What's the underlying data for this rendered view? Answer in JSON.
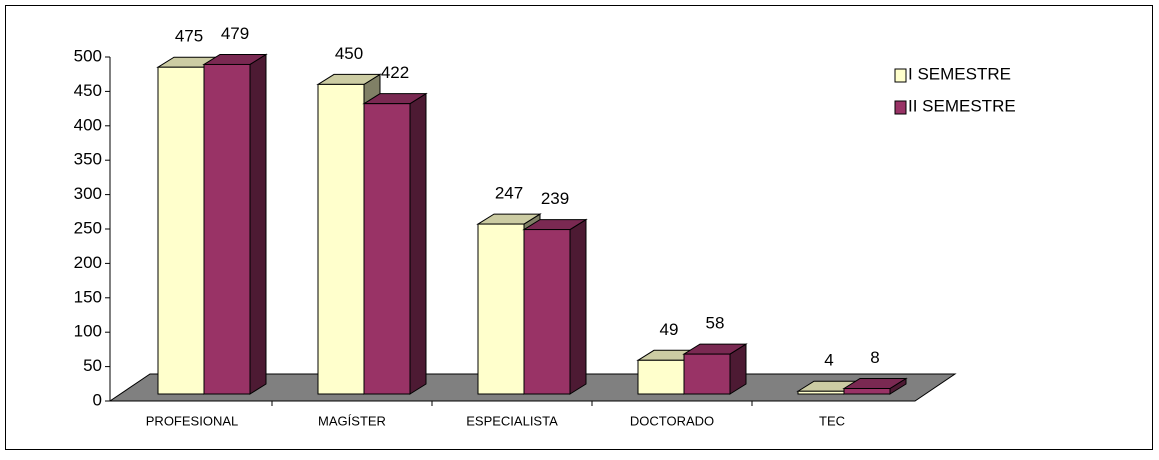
{
  "chart_data": {
    "type": "bar3d",
    "categories": [
      "PROFESIONAL",
      "MAGÍSTER",
      "ESPECIALISTA",
      "DOCTORADO",
      "TEC"
    ],
    "series": [
      {
        "name": "I SEMESTRE",
        "color": "#ffffcc",
        "values": [
          475,
          450,
          247,
          49,
          4
        ]
      },
      {
        "name": "II SEMESTRE",
        "color": "#993366",
        "values": [
          479,
          422,
          239,
          58,
          8
        ]
      }
    ],
    "ylim": [
      0,
      500
    ],
    "yticks": [
      0,
      50,
      100,
      150,
      200,
      250,
      300,
      350,
      400,
      450,
      500
    ],
    "legend": "right"
  }
}
